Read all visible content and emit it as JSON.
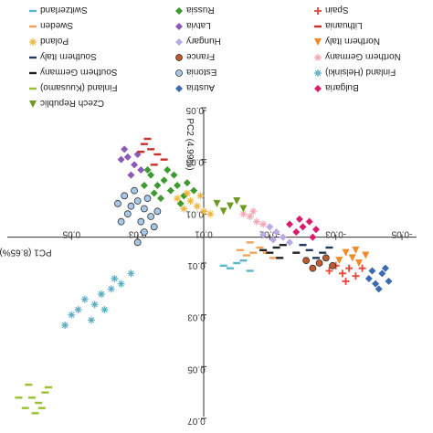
{
  "chart_data": {
    "type": "scatter",
    "title": "",
    "xlabel": "PC1 (8.65%)",
    "ylabel": "PC2 (4.99%)",
    "x_axis_orientation": "mirrored",
    "y_axis_orientation": "inverted",
    "xlim": [
      -0.05,
      0.07
    ],
    "ylim": [
      -0.05,
      0.07
    ],
    "x_ticks": [
      "-0.05",
      "-0.03",
      "-0.01",
      "0.01",
      "0.03",
      "0.05"
    ],
    "y_ticks": [
      "-0.05",
      "-0.03",
      "-0.01",
      "0.01",
      "0.03",
      "0.05",
      "0.07"
    ],
    "x_tick_values": [
      -0.05,
      -0.03,
      -0.01,
      0.01,
      0.03,
      0.05
    ],
    "y_tick_values": [
      -0.05,
      -0.03,
      -0.01,
      0.01,
      0.03,
      0.05,
      0.07
    ],
    "grid": false,
    "legend_placement": "top",
    "series": [
      {
        "name": "Switzerland",
        "color": "#5ab7cf",
        "marker": "dash",
        "points": [
          [
            0.0,
            0.01
          ],
          [
            0.002,
            0.012
          ],
          [
            -0.002,
            0.009
          ],
          [
            0.004,
            0.011
          ],
          [
            -0.004,
            0.013
          ]
        ]
      },
      {
        "name": "Russia",
        "color": "#3c9a30",
        "marker": "diamond",
        "points": [
          [
            0.022,
            -0.022
          ],
          [
            0.024,
            -0.02
          ],
          [
            0.02,
            -0.018
          ],
          [
            0.018,
            -0.02
          ],
          [
            0.026,
            -0.024
          ],
          [
            0.016,
            -0.016
          ],
          [
            0.023,
            -0.015
          ],
          [
            0.028,
            -0.02
          ],
          [
            0.019,
            -0.024
          ],
          [
            0.021,
            -0.026
          ],
          [
            0.025,
            -0.017
          ],
          [
            0.015,
            -0.021
          ],
          [
            0.017,
            -0.013
          ],
          [
            0.027,
            -0.026
          ],
          [
            0.013,
            -0.018
          ]
        ]
      },
      {
        "name": "Spain",
        "color": "#e8463a",
        "marker": "plus",
        "points": [
          [
            -0.034,
            0.012
          ],
          [
            -0.032,
            0.014
          ],
          [
            -0.03,
            0.011
          ],
          [
            -0.036,
            0.015
          ],
          [
            -0.028,
            0.013
          ],
          [
            -0.033,
            0.017
          ],
          [
            -0.038,
            0.012
          ]
        ]
      },
      {
        "name": "Sweden",
        "color": "#f1a35a",
        "marker": "dash",
        "points": [
          [
            -0.005,
            0.006
          ],
          [
            -0.007,
            0.004
          ],
          [
            -0.003,
            0.007
          ],
          [
            -0.009,
            0.006
          ],
          [
            -0.001,
            0.005
          ],
          [
            -0.011,
            0.008
          ],
          [
            -0.004,
            0.002
          ]
        ]
      },
      {
        "name": "Latvia",
        "color": "#8e58b8",
        "marker": "diamond",
        "points": [
          [
            0.031,
            -0.028
          ],
          [
            0.033,
            -0.031
          ],
          [
            0.029,
            -0.026
          ],
          [
            0.035,
            -0.03
          ],
          [
            0.032,
            -0.024
          ],
          [
            0.034,
            -0.034
          ],
          [
            0.03,
            -0.032
          ]
        ]
      },
      {
        "name": "Lithuania",
        "color": "#c8302c",
        "marker": "dash",
        "points": [
          [
            0.026,
            -0.034
          ],
          [
            0.028,
            -0.036
          ],
          [
            0.024,
            -0.032
          ],
          [
            0.022,
            -0.03
          ],
          [
            0.027,
            -0.038
          ],
          [
            0.025,
            -0.028
          ],
          [
            0.029,
            -0.033
          ]
        ]
      },
      {
        "name": "Poland",
        "color": "#f0b53a",
        "marker": "star",
        "points": [
          [
            0.012,
            -0.012
          ],
          [
            0.014,
            -0.014
          ],
          [
            0.01,
            -0.01
          ],
          [
            0.016,
            -0.011
          ],
          [
            0.018,
            -0.015
          ],
          [
            0.008,
            -0.009
          ],
          [
            0.015,
            -0.017
          ],
          [
            0.011,
            -0.016
          ]
        ]
      },
      {
        "name": "Hungary",
        "color": "#b9a9e6",
        "marker": "diamond",
        "points": [
          [
            -0.012,
            -0.002
          ],
          [
            -0.01,
            -0.004
          ],
          [
            -0.014,
            0.0
          ],
          [
            -0.008,
            -0.001
          ],
          [
            -0.016,
            0.002
          ],
          [
            -0.011,
            0.001
          ]
        ]
      },
      {
        "name": "Northern Italy",
        "color": "#f08a2a",
        "marker": "triangle",
        "points": [
          [
            -0.035,
            0.008
          ],
          [
            -0.037,
            0.01
          ],
          [
            -0.033,
            0.006
          ],
          [
            -0.031,
            0.009
          ],
          [
            -0.039,
            0.007
          ],
          [
            -0.036,
            0.005
          ]
        ]
      },
      {
        "name": "Southern Italy",
        "color": "#1e3a5a",
        "marker": "dash",
        "points": [
          [
            -0.026,
            0.006
          ],
          [
            -0.024,
            0.008
          ],
          [
            -0.028,
            0.004
          ],
          [
            -0.022,
            0.005
          ],
          [
            -0.02,
            0.003
          ]
        ]
      },
      {
        "name": "France",
        "color": "#c05a2a",
        "marker": "circle",
        "points": [
          [
            -0.025,
            0.01
          ],
          [
            -0.023,
            0.012
          ],
          [
            -0.027,
            0.008
          ],
          [
            -0.029,
            0.011
          ],
          [
            -0.021,
            0.009
          ]
        ]
      },
      {
        "name": "Northern Germany",
        "color": "#f3a7b3",
        "marker": "star",
        "points": [
          [
            -0.004,
            -0.008
          ],
          [
            -0.006,
            -0.006
          ],
          [
            -0.002,
            -0.009
          ],
          [
            -0.008,
            -0.005
          ],
          [
            -0.005,
            -0.01
          ]
        ]
      },
      {
        "name": "Southern Germany",
        "color": "#222222",
        "marker": "dash",
        "points": [
          [
            -0.012,
            0.004
          ],
          [
            -0.01,
            0.006
          ],
          [
            -0.014,
            0.003
          ],
          [
            -0.008,
            0.005
          ],
          [
            -0.013,
            0.008
          ],
          [
            -0.018,
            0.006
          ]
        ]
      },
      {
        "name": "Estonia",
        "color": "#a8c8e8",
        "marker": "circle",
        "points": [
          [
            0.028,
            -0.011
          ],
          [
            0.03,
            -0.014
          ],
          [
            0.026,
            -0.008
          ],
          [
            0.032,
            -0.012
          ],
          [
            0.034,
            -0.016
          ],
          [
            0.029,
            -0.006
          ],
          [
            0.031,
            -0.018
          ],
          [
            0.025,
            -0.004
          ],
          [
            0.033,
            -0.009
          ],
          [
            0.027,
            -0.015
          ],
          [
            0.035,
            -0.006
          ],
          [
            0.03,
            0.002
          ],
          [
            0.024,
            -0.01
          ],
          [
            0.036,
            -0.013
          ],
          [
            0.028,
            -0.002
          ]
        ]
      },
      {
        "name": "Finland (Helsinki)",
        "color": "#5aaec2",
        "marker": "star",
        "points": [
          [
            0.041,
            0.022
          ],
          [
            0.043,
            0.026
          ],
          [
            0.046,
            0.024
          ],
          [
            0.038,
            0.02
          ],
          [
            0.05,
            0.03
          ],
          [
            0.048,
            0.028
          ],
          [
            0.044,
            0.032
          ],
          [
            0.035,
            0.018
          ],
          [
            0.032,
            0.014
          ],
          [
            0.052,
            0.034
          ],
          [
            0.04,
            0.028
          ],
          [
            0.037,
            0.016
          ]
        ]
      },
      {
        "name": "Finland (Kuusamo)",
        "color": "#98c030",
        "marker": "dash",
        "points": [
          [
            0.06,
            0.064
          ],
          [
            0.062,
            0.062
          ],
          [
            0.064,
            0.066
          ],
          [
            0.058,
            0.06
          ],
          [
            0.066,
            0.062
          ],
          [
            0.061,
            0.068
          ],
          [
            0.057,
            0.058
          ],
          [
            0.063,
            0.057
          ],
          [
            0.059,
            0.066
          ]
        ]
      },
      {
        "name": "Austria",
        "color": "#3a6ab0",
        "marker": "diamond",
        "points": [
          [
            -0.04,
            0.016
          ],
          [
            -0.042,
            0.018
          ],
          [
            -0.044,
            0.014
          ],
          [
            -0.046,
            0.017
          ],
          [
            -0.043,
            0.02
          ],
          [
            -0.045,
            0.012
          ],
          [
            -0.041,
            0.013
          ]
        ]
      },
      {
        "name": "Bulgaria",
        "color": "#d81b6e",
        "marker": "diamond",
        "points": [
          [
            -0.02,
            -0.004
          ],
          [
            -0.018,
            -0.002
          ],
          [
            -0.022,
            -0.006
          ],
          [
            -0.024,
            -0.003
          ],
          [
            -0.019,
            -0.007
          ],
          [
            -0.016,
            -0.005
          ],
          [
            -0.023,
            0.0
          ]
        ]
      },
      {
        "name": "Czech Republic",
        "color": "#6e9a22",
        "marker": "triangle-down",
        "points": [
          [
            0.002,
            -0.012
          ],
          [
            0.0,
            -0.014
          ],
          [
            0.004,
            -0.01
          ],
          [
            0.006,
            -0.013
          ],
          [
            -0.002,
            -0.011
          ]
        ]
      }
    ]
  }
}
